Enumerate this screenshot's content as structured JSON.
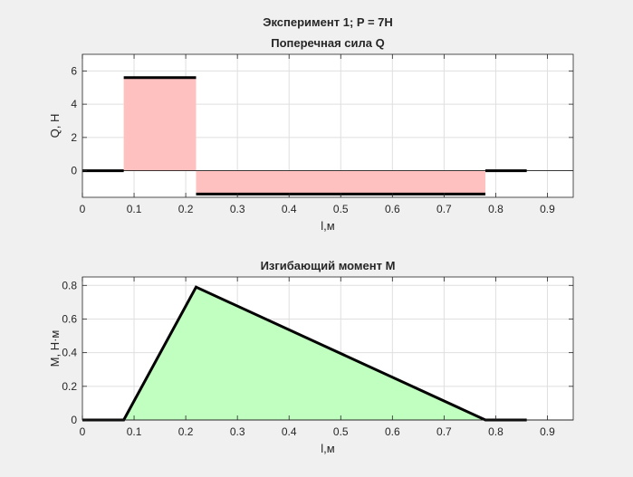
{
  "figure": {
    "title_line1": "Эксперимент 1;  P = 7Н"
  },
  "chart_data": [
    {
      "type": "area",
      "title": "Поперечная сила Q",
      "xlabel": "l,м",
      "ylabel": "Q, Н",
      "xlim": [
        0,
        0.95
      ],
      "ylim": [
        -1.6,
        7
      ],
      "xticks": [
        0,
        0.1,
        0.2,
        0.3,
        0.4,
        0.5,
        0.6,
        0.7,
        0.8,
        0.9
      ],
      "xtick_labels": [
        "0",
        "0.1",
        "0.2",
        "0.3",
        "0.4",
        "0.5",
        "0.6",
        "0.7",
        "0.8",
        "0.9"
      ],
      "yticks": [
        0,
        2,
        4,
        6
      ],
      "ytick_labels": [
        "0",
        "2",
        "4",
        "6"
      ],
      "grid": true,
      "fill_color": "#ffc0c0",
      "line_color": "#000000",
      "segments": [
        {
          "x": [
            0,
            0.08
          ],
          "value": 0
        },
        {
          "x": [
            0.08,
            0.22
          ],
          "value": 5.6
        },
        {
          "x": [
            0.22,
            0.78
          ],
          "value": -1.4
        },
        {
          "x": [
            0.78,
            0.86
          ],
          "value": 0
        }
      ]
    },
    {
      "type": "area",
      "title": "Изгибающий момент M",
      "xlabel": "l,м",
      "ylabel": "M, Н·м",
      "xlim": [
        0,
        0.95
      ],
      "ylim": [
        0,
        0.85
      ],
      "xticks": [
        0,
        0.1,
        0.2,
        0.3,
        0.4,
        0.5,
        0.6,
        0.7,
        0.8,
        0.9
      ],
      "xtick_labels": [
        "0",
        "0.1",
        "0.2",
        "0.3",
        "0.4",
        "0.5",
        "0.6",
        "0.7",
        "0.8",
        "0.9"
      ],
      "yticks": [
        0,
        0.2,
        0.4,
        0.6,
        0.8
      ],
      "ytick_labels": [
        "0",
        "0.2",
        "0.4",
        "0.6",
        "0.8"
      ],
      "grid": true,
      "fill_color": "#c0ffc0",
      "line_color": "#000000",
      "x": [
        0,
        0.08,
        0.22,
        0.78,
        0.86
      ],
      "y": [
        0,
        0,
        0.79,
        0,
        0
      ]
    }
  ]
}
